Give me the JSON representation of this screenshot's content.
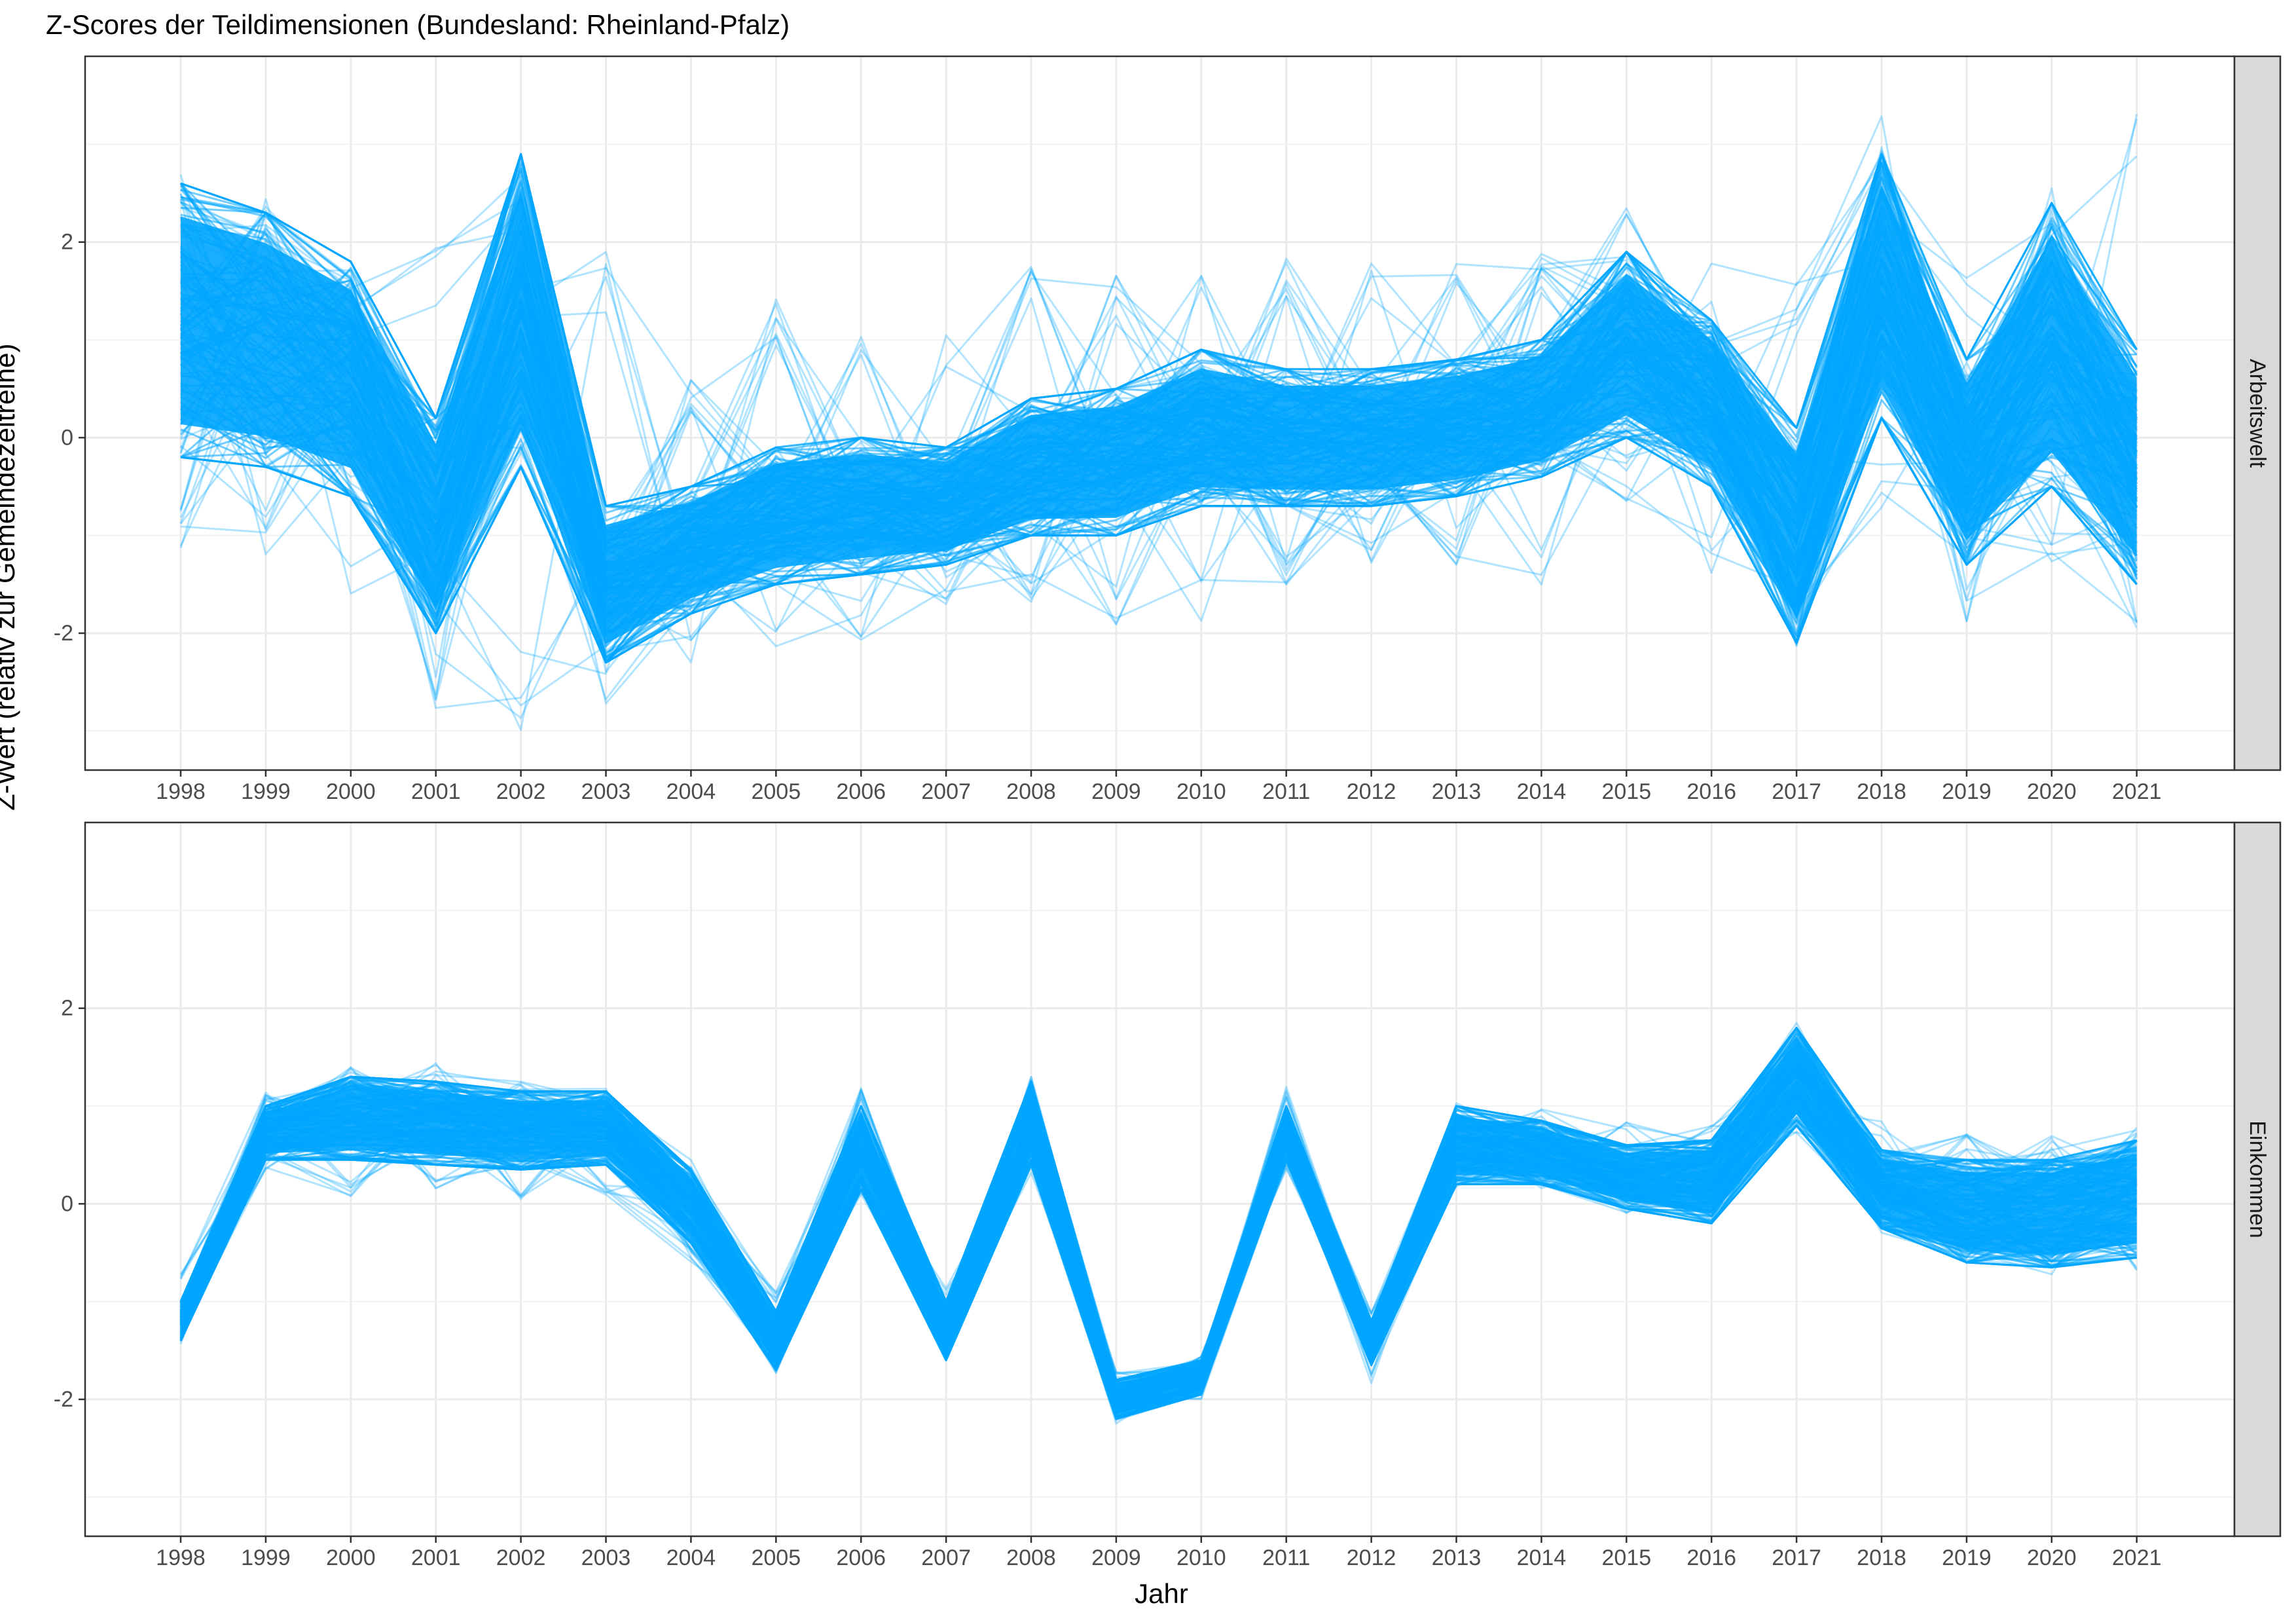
{
  "chart_data": {
    "type": "line",
    "title": "Z-Scores der Teildimensionen (Bundesland: Rheinland-Pfalz)",
    "xlabel": "Jahr",
    "ylabel": "Z-Wert (relativ zur Gemeindezeitreihe)",
    "x": [
      "1998",
      "1999",
      "2000",
      "2001",
      "2002",
      "2003",
      "2004",
      "2005",
      "2006",
      "2007",
      "2008",
      "2009",
      "2010",
      "2011",
      "2012",
      "2013",
      "2014",
      "2015",
      "2016",
      "2017",
      "2018",
      "2019",
      "2020",
      "2021"
    ],
    "ylim": [
      -3.4,
      3.9
    ],
    "yticks": [
      -2,
      0,
      2
    ],
    "ytick_labels": [
      "-2",
      "0",
      "2"
    ],
    "grid": true,
    "line_color": "#00A5FF",
    "panels": [
      {
        "label": "Arbeitswelt",
        "n_lines_approx": 2300,
        "mean": [
          1.4,
          1.1,
          0.55,
          -0.9,
          0.6,
          -1.55,
          -1.2,
          -0.8,
          -0.75,
          -0.7,
          -0.35,
          -0.3,
          0.1,
          -0.05,
          -0.05,
          0.1,
          0.3,
          0.95,
          0.4,
          -1.0,
          1.55,
          -0.25,
          1.0,
          0.05
        ],
        "min": [
          -1.2,
          -1.3,
          -1.75,
          -2.9,
          -3.1,
          -2.75,
          -2.3,
          -2.5,
          -2.1,
          -1.8,
          -1.9,
          -2.0,
          -1.95,
          -1.65,
          -1.3,
          -1.3,
          -1.55,
          -0.65,
          -1.4,
          -2.45,
          -0.75,
          -1.95,
          -1.4,
          -2.0
        ],
        "max": [
          2.75,
          2.45,
          2.1,
          2.0,
          3.3,
          1.9,
          0.6,
          1.55,
          1.3,
          1.1,
          1.75,
          1.7,
          1.8,
          1.9,
          1.85,
          1.85,
          1.9,
          2.6,
          1.85,
          1.65,
          3.3,
          1.65,
          2.6,
          3.6
        ],
        "core_low": [
          -0.2,
          -0.3,
          -0.6,
          -2.0,
          -0.3,
          -2.3,
          -1.8,
          -1.5,
          -1.4,
          -1.3,
          -1.0,
          -1.0,
          -0.7,
          -0.7,
          -0.7,
          -0.6,
          -0.4,
          0.0,
          -0.5,
          -2.1,
          0.2,
          -1.3,
          -0.5,
          -1.5
        ],
        "core_high": [
          2.6,
          2.3,
          1.8,
          0.2,
          2.9,
          -0.7,
          -0.5,
          -0.1,
          0.0,
          -0.1,
          0.4,
          0.5,
          0.9,
          0.7,
          0.7,
          0.8,
          1.0,
          1.9,
          1.2,
          0.1,
          2.9,
          0.8,
          2.4,
          0.9
        ]
      },
      {
        "label": "Einkommen",
        "n_lines_approx": 2300,
        "mean": [
          -1.2,
          0.7,
          0.85,
          0.8,
          0.75,
          0.8,
          0.0,
          -1.4,
          0.6,
          -1.3,
          0.8,
          -2.0,
          -1.75,
          0.75,
          -1.4,
          0.65,
          0.55,
          0.3,
          0.25,
          1.1,
          0.2,
          -0.15,
          -0.15,
          0.0
        ],
        "min": [
          -1.45,
          0.35,
          0.05,
          0.1,
          0.0,
          0.05,
          -0.6,
          -1.75,
          0.1,
          -1.65,
          0.25,
          -2.25,
          -2.0,
          0.35,
          -1.85,
          0.15,
          0.15,
          -0.1,
          -0.3,
          0.7,
          -0.3,
          -0.7,
          -0.75,
          -0.7
        ],
        "max": [
          -0.7,
          1.15,
          1.4,
          1.45,
          1.25,
          1.2,
          0.45,
          -0.9,
          1.2,
          -0.85,
          1.35,
          -1.7,
          -1.55,
          1.2,
          -1.1,
          1.15,
          1.0,
          0.9,
          0.9,
          1.9,
          0.85,
          0.75,
          0.7,
          0.8
        ],
        "core_low": [
          -1.4,
          0.45,
          0.45,
          0.4,
          0.35,
          0.4,
          -0.4,
          -1.7,
          0.15,
          -1.6,
          0.4,
          -2.2,
          -1.95,
          0.45,
          -1.65,
          0.2,
          0.2,
          -0.05,
          -0.2,
          0.8,
          -0.25,
          -0.6,
          -0.65,
          -0.55
        ],
        "core_high": [
          -1.0,
          1.0,
          1.3,
          1.25,
          1.15,
          1.15,
          0.35,
          -1.1,
          1.0,
          -1.0,
          1.25,
          -1.8,
          -1.6,
          1.0,
          -1.2,
          1.0,
          0.85,
          0.6,
          0.65,
          1.8,
          0.55,
          0.45,
          0.45,
          0.65
        ]
      }
    ]
  }
}
